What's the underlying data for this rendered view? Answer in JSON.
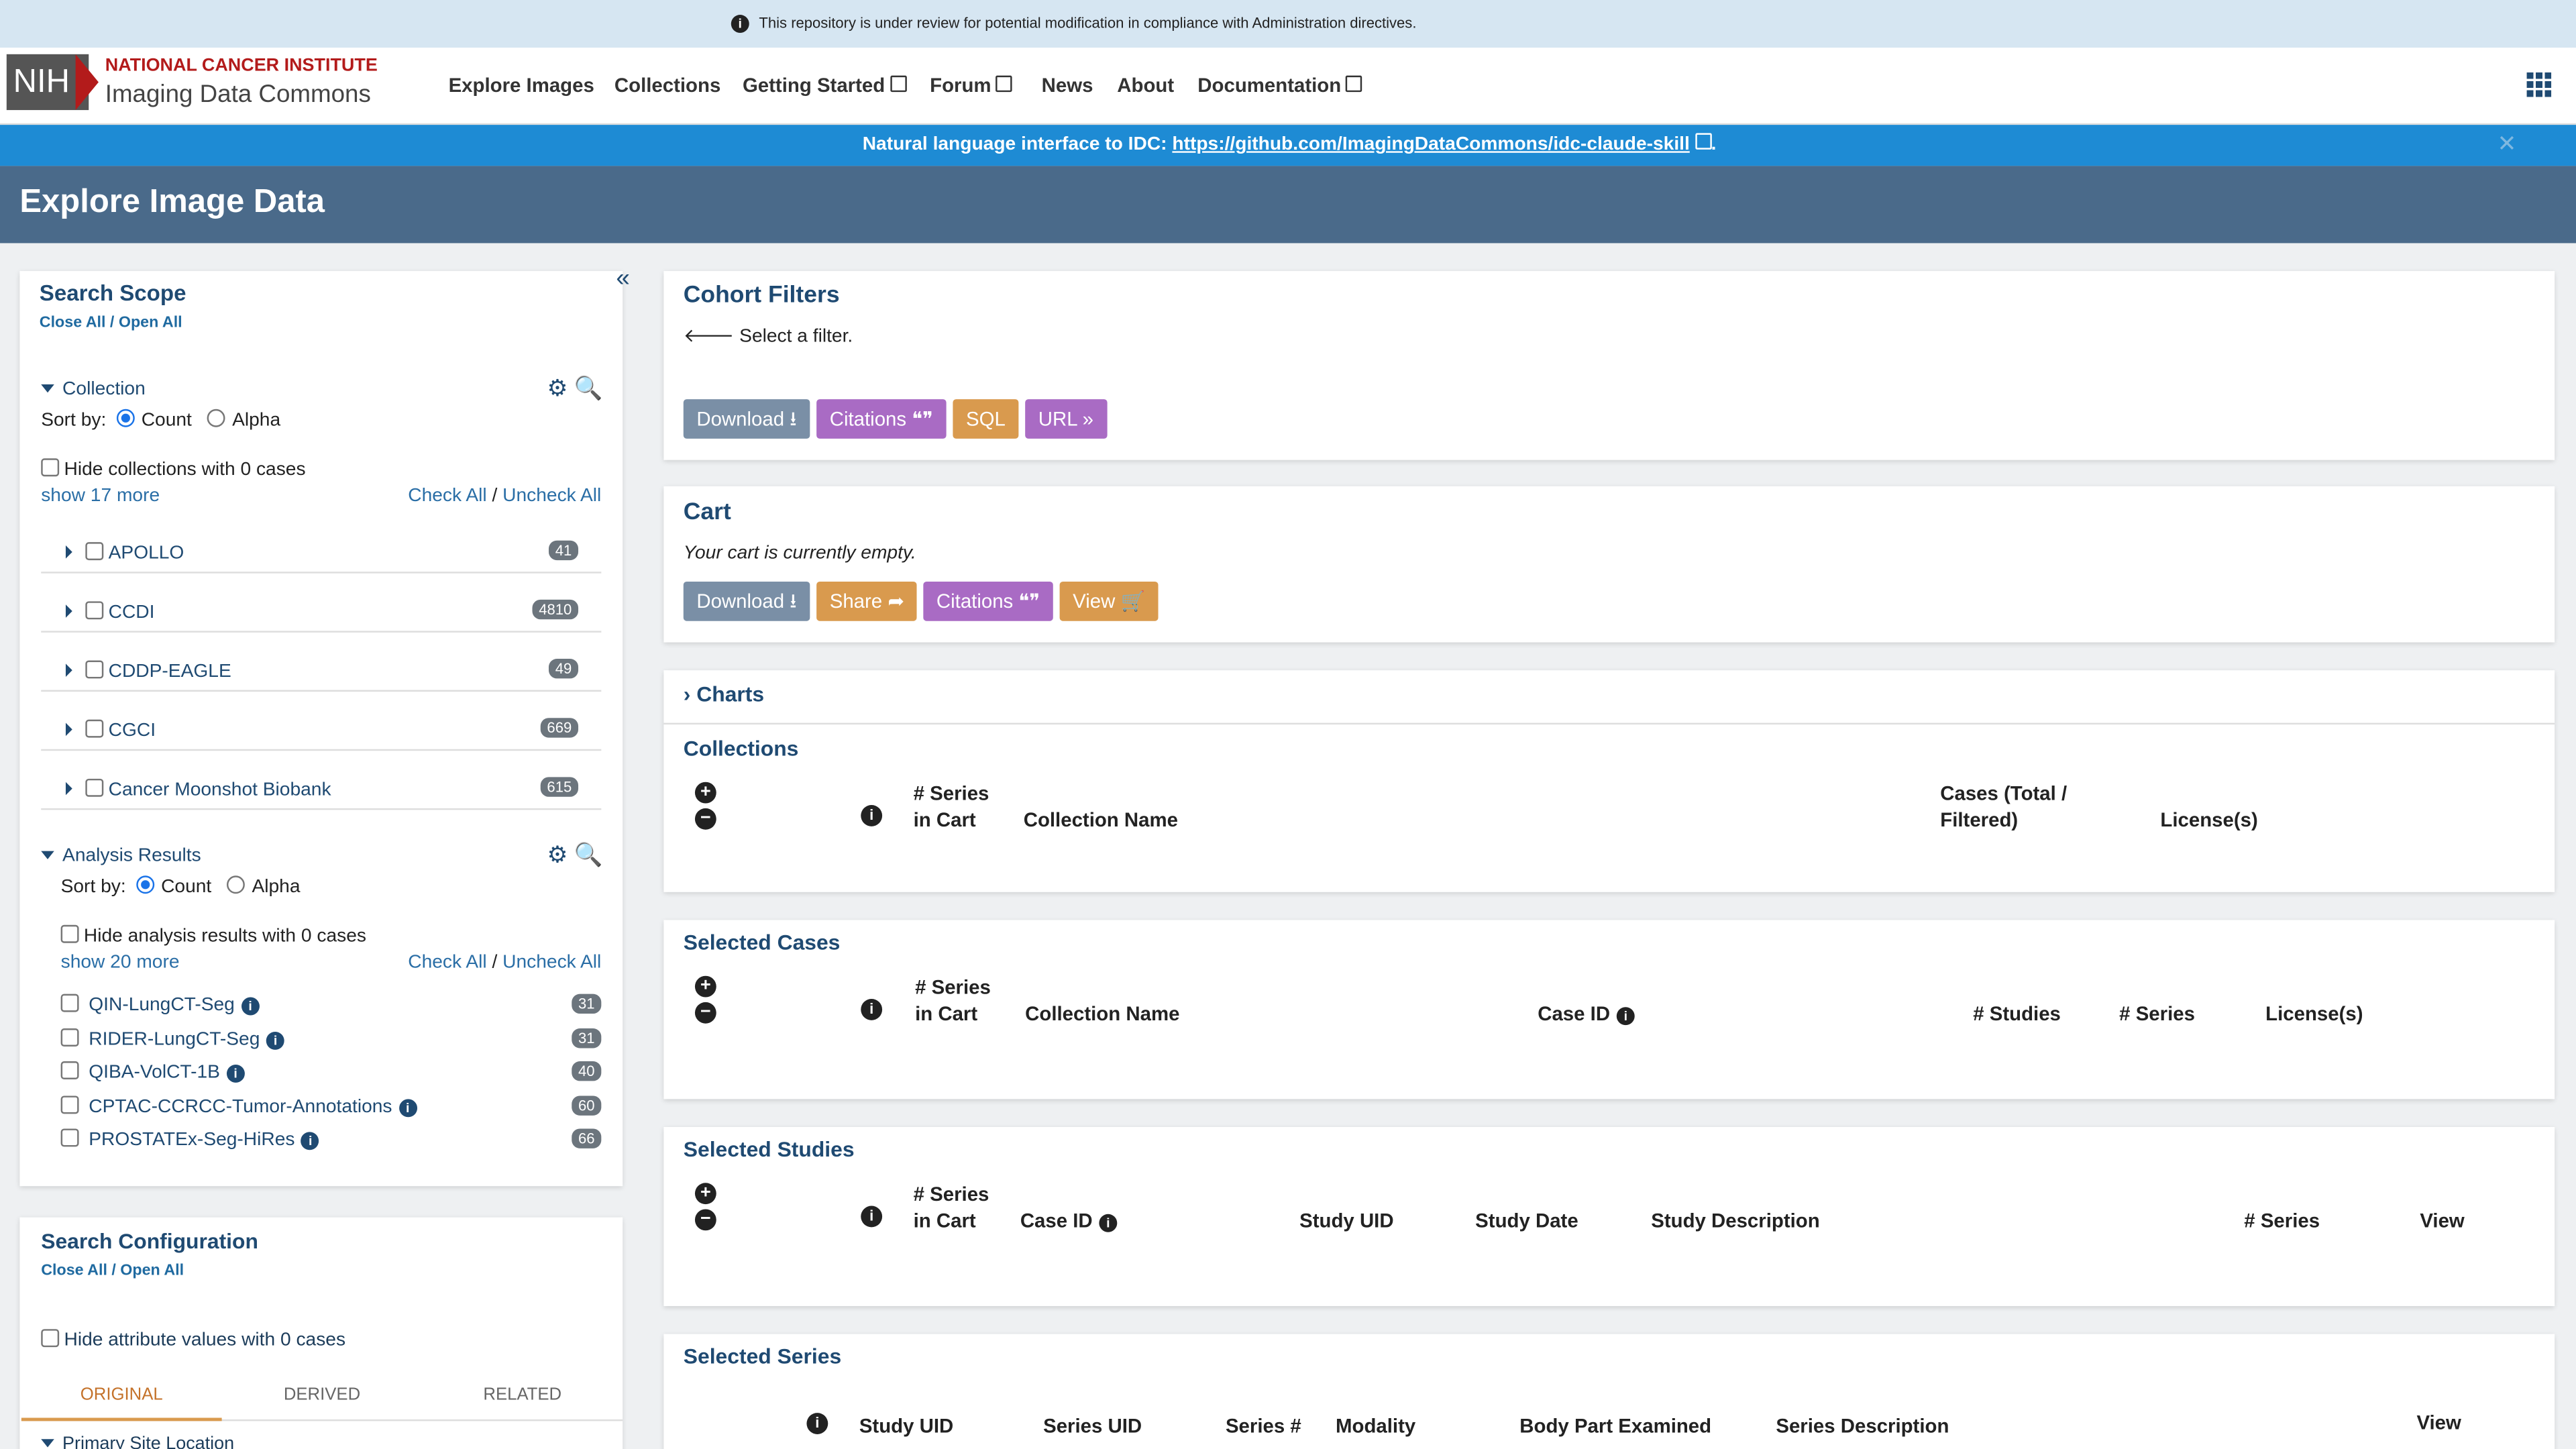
{
  "banner": "This repository is under review for potential modification in compliance with Administration directives.",
  "header": {
    "logo": "NIH",
    "org": "NATIONAL CANCER INSTITUTE",
    "product": "Imaging Data Commons",
    "nav": [
      "Explore Images",
      "Collections",
      "Getting Started",
      "Forum",
      "News",
      "About",
      "Documentation"
    ]
  },
  "notice": {
    "text": "Natural language interface to IDC:",
    "link": "https://github.com/ImagingDataCommons/idc-claude-skill",
    "suffix": "."
  },
  "page_title": "Explore Image Data",
  "sidebar": {
    "title": "Search Scope",
    "close_open": "Close All / Open All",
    "collection": {
      "title": "Collection",
      "sort_label": "Sort by:",
      "sort_options": [
        "Count",
        "Alpha"
      ],
      "hide": "Hide collections with 0 cases",
      "show_more": "show 17 more",
      "check": "Check All",
      "uncheck": "Uncheck All",
      "items": [
        {
          "name": "APOLLO",
          "count": "41"
        },
        {
          "name": "CCDI",
          "count": "4810"
        },
        {
          "name": "CDDP-EAGLE",
          "count": "49"
        },
        {
          "name": "CGCI",
          "count": "669"
        },
        {
          "name": "Cancer Moonshot Biobank",
          "count": "615"
        }
      ]
    },
    "analysis": {
      "title": "Analysis Results",
      "sort_label": "Sort by:",
      "sort_options": [
        "Count",
        "Alpha"
      ],
      "hide": "Hide analysis results with 0 cases",
      "show_more": "show 20 more",
      "check": "Check All",
      "uncheck": "Uncheck All",
      "items": [
        {
          "name": "QIN-LungCT-Seg",
          "count": "31"
        },
        {
          "name": "RIDER-LungCT-Seg",
          "count": "31"
        },
        {
          "name": "QIBA-VolCT-1B",
          "count": "40"
        },
        {
          "name": "CPTAC-CCRCC-Tumor-Annotations",
          "count": "60"
        },
        {
          "name": "PROSTATEx-Seg-HiRes",
          "count": "66"
        }
      ]
    }
  },
  "config": {
    "title": "Search Configuration",
    "close_open": "Close All / Open All",
    "hide": "Hide attribute values with 0 cases",
    "tabs": [
      "ORIGINAL",
      "DERIVED",
      "RELATED"
    ],
    "first_section": "Primary Site Location"
  },
  "cohort": {
    "title": "Cohort Filters",
    "hint": "Select a filter.",
    "buttons": [
      "Download",
      "Citations",
      "SQL",
      "URL"
    ]
  },
  "cart": {
    "title": "Cart",
    "empty": "Your cart is currently empty.",
    "buttons": [
      "Download",
      "Share",
      "Citations",
      "View"
    ]
  },
  "charts": "Charts",
  "tables": [
    {
      "title": "Collections",
      "headers": [
        "# Series in Cart",
        "Collection Name",
        "Cases (Total / Filtered)",
        "License(s)"
      ]
    },
    {
      "title": "Selected Cases",
      "headers": [
        "# Series in Cart",
        "Collection Name",
        "Case ID",
        "# Studies",
        "# Series",
        "License(s)"
      ]
    },
    {
      "title": "Selected Studies",
      "headers": [
        "# Series in Cart",
        "Case ID",
        "Study UID",
        "Study Date",
        "Study Description",
        "# Series",
        "View"
      ]
    },
    {
      "title": "Selected Series",
      "headers": [
        "Study UID",
        "Series UID",
        "Series #",
        "Modality",
        "Body Part Examined",
        "Series Description",
        "View"
      ]
    }
  ]
}
